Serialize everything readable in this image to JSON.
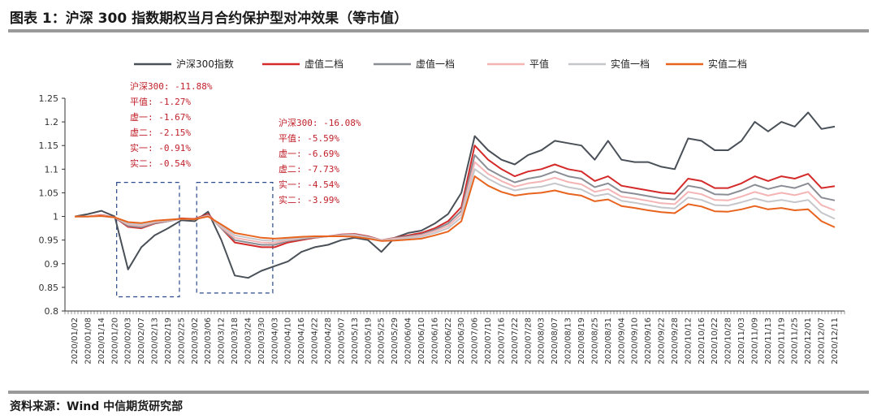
{
  "header": {
    "title": "图表 1：沪深 300 指数期权当月合约保护型对冲效果（等市值）"
  },
  "footer": {
    "source": "资料来源：Wind 中信期货研究部"
  },
  "chart_data": {
    "type": "line",
    "ylim": [
      0.8,
      1.25
    ],
    "yticks": [
      "0.8",
      "0.85",
      "0.9",
      "0.95",
      "1",
      "1.05",
      "1.1",
      "1.15",
      "1.2",
      "1.25"
    ],
    "grid": false,
    "legend_position": "top",
    "x_tick_labels": [
      "2020/01/02",
      "2020/01/08",
      "2020/01/14",
      "2020/01/20",
      "2020/02/03",
      "2020/02/07",
      "2020/02/13",
      "2020/02/19",
      "2020/02/25",
      "2020/03/02",
      "2020/03/06",
      "2020/03/12",
      "2020/03/18",
      "2020/03/24",
      "2020/03/30",
      "2020/04/03",
      "2020/04/10",
      "2020/04/16",
      "2020/04/22",
      "2020/04/28",
      "2020/05/07",
      "2020/05/13",
      "2020/05/19",
      "2020/05/25",
      "2020/05/29",
      "2020/06/04",
      "2020/06/10",
      "2020/06/16",
      "2020/06/22",
      "2020/06/30",
      "2020/07/06",
      "2020/07/10",
      "2020/07/16",
      "2020/07/22",
      "2020/07/28",
      "2020/08/03",
      "2020/08/07",
      "2020/08/13",
      "2020/08/19",
      "2020/08/25",
      "2020/08/31",
      "2020/09/04",
      "2020/09/10",
      "2020/09/16",
      "2020/09/22",
      "2020/09/28",
      "2020/10/12",
      "2020/10/16",
      "2020/10/22",
      "2020/10/28",
      "2020/11/03",
      "2020/11/09",
      "2020/11/13",
      "2020/11/19",
      "2020/11/25",
      "2020/12/01",
      "2020/12/07",
      "2020/12/11"
    ],
    "series": [
      {
        "name": "沪深300指数",
        "color": "#4a5058",
        "x": [
          "2020/01/02",
          "2020/01/08",
          "2020/01/14",
          "2020/01/20",
          "2020/02/03",
          "2020/02/07",
          "2020/02/13",
          "2020/02/19",
          "2020/02/25",
          "2020/03/02",
          "2020/03/06",
          "2020/03/12",
          "2020/03/18",
          "2020/03/24",
          "2020/03/30",
          "2020/04/03",
          "2020/04/10",
          "2020/04/16",
          "2020/04/22",
          "2020/04/28",
          "2020/05/07",
          "2020/05/13",
          "2020/05/19",
          "2020/05/25",
          "2020/05/29",
          "2020/06/04",
          "2020/06/10",
          "2020/06/16",
          "2020/06/22",
          "2020/06/30",
          "2020/07/06",
          "2020/07/10",
          "2020/07/16",
          "2020/07/22",
          "2020/07/28",
          "2020/08/03",
          "2020/08/07",
          "2020/08/13",
          "2020/08/19",
          "2020/08/25",
          "2020/08/31",
          "2020/09/04",
          "2020/09/10",
          "2020/09/16",
          "2020/09/22",
          "2020/09/28",
          "2020/10/12",
          "2020/10/16",
          "2020/10/22",
          "2020/10/28",
          "2020/11/03",
          "2020/11/09",
          "2020/11/13",
          "2020/11/19",
          "2020/11/25",
          "2020/12/01",
          "2020/12/07",
          "2020/12/11"
        ],
        "values": [
          1.0,
          1.005,
          1.012,
          1.0,
          0.888,
          0.935,
          0.96,
          0.975,
          0.992,
          0.99,
          1.01,
          0.95,
          0.875,
          0.87,
          0.885,
          0.895,
          0.905,
          0.925,
          0.935,
          0.94,
          0.95,
          0.955,
          0.95,
          0.925,
          0.955,
          0.965,
          0.97,
          0.985,
          1.005,
          1.05,
          1.17,
          1.14,
          1.12,
          1.11,
          1.13,
          1.14,
          1.16,
          1.155,
          1.15,
          1.12,
          1.16,
          1.12,
          1.115,
          1.115,
          1.105,
          1.1,
          1.165,
          1.16,
          1.14,
          1.14,
          1.16,
          1.2,
          1.18,
          1.2,
          1.19,
          1.22,
          1.185,
          1.19
        ]
      },
      {
        "name": "虚值二档",
        "color": "#d42a2a",
        "x": [
          "2020/01/02",
          "2020/01/08",
          "2020/01/14",
          "2020/01/20",
          "2020/02/03",
          "2020/02/07",
          "2020/02/13",
          "2020/02/19",
          "2020/02/25",
          "2020/03/02",
          "2020/03/06",
          "2020/03/12",
          "2020/03/18",
          "2020/03/24",
          "2020/03/30",
          "2020/04/03",
          "2020/04/10",
          "2020/04/16",
          "2020/04/22",
          "2020/04/28",
          "2020/05/07",
          "2020/05/13",
          "2020/05/19",
          "2020/05/25",
          "2020/05/29",
          "2020/06/04",
          "2020/06/10",
          "2020/06/16",
          "2020/06/22",
          "2020/06/30",
          "2020/07/06",
          "2020/07/10",
          "2020/07/16",
          "2020/07/22",
          "2020/07/28",
          "2020/08/03",
          "2020/08/07",
          "2020/08/13",
          "2020/08/19",
          "2020/08/25",
          "2020/08/31",
          "2020/09/04",
          "2020/09/10",
          "2020/09/16",
          "2020/09/22",
          "2020/09/28",
          "2020/10/12",
          "2020/10/16",
          "2020/10/22",
          "2020/10/28",
          "2020/11/03",
          "2020/11/09",
          "2020/11/13",
          "2020/11/19",
          "2020/11/25",
          "2020/12/01",
          "2020/12/07",
          "2020/12/11"
        ],
        "values": [
          1.0,
          1.0,
          1.003,
          0.998,
          0.978,
          0.975,
          0.985,
          0.99,
          0.996,
          0.995,
          1.005,
          0.975,
          0.945,
          0.94,
          0.935,
          0.935,
          0.945,
          0.95,
          0.955,
          0.958,
          0.962,
          0.963,
          0.958,
          0.95,
          0.955,
          0.96,
          0.965,
          0.975,
          0.99,
          1.02,
          1.15,
          1.12,
          1.1,
          1.085,
          1.095,
          1.1,
          1.11,
          1.1,
          1.095,
          1.075,
          1.085,
          1.065,
          1.06,
          1.055,
          1.05,
          1.048,
          1.08,
          1.075,
          1.06,
          1.06,
          1.07,
          1.085,
          1.075,
          1.085,
          1.08,
          1.09,
          1.06,
          1.064
        ]
      },
      {
        "name": "虚值一档",
        "color": "#8a8e94",
        "x": [
          "2020/01/02",
          "2020/01/08",
          "2020/01/14",
          "2020/01/20",
          "2020/02/03",
          "2020/02/07",
          "2020/02/13",
          "2020/02/19",
          "2020/02/25",
          "2020/03/02",
          "2020/03/06",
          "2020/03/12",
          "2020/03/18",
          "2020/03/24",
          "2020/03/30",
          "2020/04/03",
          "2020/04/10",
          "2020/04/16",
          "2020/04/22",
          "2020/04/28",
          "2020/05/07",
          "2020/05/13",
          "2020/05/19",
          "2020/05/25",
          "2020/05/29",
          "2020/06/04",
          "2020/06/10",
          "2020/06/16",
          "2020/06/22",
          "2020/06/30",
          "2020/07/06",
          "2020/07/10",
          "2020/07/16",
          "2020/07/22",
          "2020/07/28",
          "2020/08/03",
          "2020/08/07",
          "2020/08/13",
          "2020/08/19",
          "2020/08/25",
          "2020/08/31",
          "2020/09/04",
          "2020/09/10",
          "2020/09/16",
          "2020/09/22",
          "2020/09/28",
          "2020/10/12",
          "2020/10/16",
          "2020/10/22",
          "2020/10/28",
          "2020/11/03",
          "2020/11/09",
          "2020/11/13",
          "2020/11/19",
          "2020/11/25",
          "2020/12/01",
          "2020/12/07",
          "2020/12/11"
        ],
        "values": [
          1.0,
          1.0,
          1.002,
          0.998,
          0.98,
          0.977,
          0.986,
          0.99,
          0.995,
          0.994,
          1.003,
          0.975,
          0.95,
          0.945,
          0.94,
          0.94,
          0.948,
          0.952,
          0.956,
          0.958,
          0.961,
          0.962,
          0.957,
          0.95,
          0.954,
          0.958,
          0.962,
          0.972,
          0.985,
          1.012,
          1.13,
          1.1,
          1.085,
          1.072,
          1.08,
          1.085,
          1.095,
          1.085,
          1.08,
          1.062,
          1.07,
          1.052,
          1.048,
          1.043,
          1.038,
          1.036,
          1.065,
          1.06,
          1.047,
          1.046,
          1.055,
          1.067,
          1.058,
          1.065,
          1.06,
          1.07,
          1.04,
          1.034
        ]
      },
      {
        "name": "平值",
        "color": "#f4b4b4",
        "x": [
          "2020/01/02",
          "2020/01/08",
          "2020/01/14",
          "2020/01/20",
          "2020/02/03",
          "2020/02/07",
          "2020/02/13",
          "2020/02/19",
          "2020/02/25",
          "2020/03/02",
          "2020/03/06",
          "2020/03/12",
          "2020/03/18",
          "2020/03/24",
          "2020/03/30",
          "2020/04/03",
          "2020/04/10",
          "2020/04/16",
          "2020/04/22",
          "2020/04/28",
          "2020/05/07",
          "2020/05/13",
          "2020/05/19",
          "2020/05/25",
          "2020/05/29",
          "2020/06/04",
          "2020/06/10",
          "2020/06/16",
          "2020/06/22",
          "2020/06/30",
          "2020/07/06",
          "2020/07/10",
          "2020/07/16",
          "2020/07/22",
          "2020/07/28",
          "2020/08/03",
          "2020/08/07",
          "2020/08/13",
          "2020/08/19",
          "2020/08/25",
          "2020/08/31",
          "2020/09/04",
          "2020/09/10",
          "2020/09/16",
          "2020/09/22",
          "2020/09/28",
          "2020/10/12",
          "2020/10/16",
          "2020/10/22",
          "2020/10/28",
          "2020/11/03",
          "2020/11/09",
          "2020/11/13",
          "2020/11/19",
          "2020/11/25",
          "2020/12/01",
          "2020/12/07",
          "2020/12/11"
        ],
        "values": [
          1.0,
          1.0,
          1.002,
          0.998,
          0.983,
          0.98,
          0.988,
          0.991,
          0.995,
          0.994,
          1.002,
          0.977,
          0.955,
          0.95,
          0.945,
          0.944,
          0.95,
          0.954,
          0.957,
          0.958,
          0.96,
          0.961,
          0.956,
          0.95,
          0.953,
          0.956,
          0.96,
          0.969,
          0.98,
          1.005,
          1.115,
          1.09,
          1.075,
          1.063,
          1.07,
          1.074,
          1.082,
          1.073,
          1.068,
          1.052,
          1.058,
          1.042,
          1.038,
          1.033,
          1.028,
          1.026,
          1.052,
          1.047,
          1.035,
          1.034,
          1.042,
          1.052,
          1.044,
          1.05,
          1.045,
          1.052,
          1.024,
          1.013
        ]
      },
      {
        "name": "实值一档",
        "color": "#c4c6ca",
        "x": [
          "2020/01/02",
          "2020/01/08",
          "2020/01/14",
          "2020/01/20",
          "2020/02/03",
          "2020/02/07",
          "2020/02/13",
          "2020/02/19",
          "2020/02/25",
          "2020/03/02",
          "2020/03/06",
          "2020/03/12",
          "2020/03/18",
          "2020/03/24",
          "2020/03/30",
          "2020/04/03",
          "2020/04/10",
          "2020/04/16",
          "2020/04/22",
          "2020/04/28",
          "2020/05/07",
          "2020/05/13",
          "2020/05/19",
          "2020/05/25",
          "2020/05/29",
          "2020/06/04",
          "2020/06/10",
          "2020/06/16",
          "2020/06/22",
          "2020/06/30",
          "2020/07/06",
          "2020/07/10",
          "2020/07/16",
          "2020/07/22",
          "2020/07/28",
          "2020/08/03",
          "2020/08/07",
          "2020/08/13",
          "2020/08/19",
          "2020/08/25",
          "2020/08/31",
          "2020/09/04",
          "2020/09/10",
          "2020/09/16",
          "2020/09/22",
          "2020/09/28",
          "2020/10/12",
          "2020/10/16",
          "2020/10/22",
          "2020/10/28",
          "2020/11/03",
          "2020/11/09",
          "2020/11/13",
          "2020/11/19",
          "2020/11/25",
          "2020/12/01",
          "2020/12/07",
          "2020/12/11"
        ],
        "values": [
          1.0,
          1.0,
          1.001,
          0.998,
          0.985,
          0.983,
          0.99,
          0.992,
          0.995,
          0.994,
          1.001,
          0.98,
          0.96,
          0.955,
          0.95,
          0.948,
          0.952,
          0.955,
          0.957,
          0.958,
          0.959,
          0.959,
          0.955,
          0.949,
          0.951,
          0.954,
          0.957,
          0.965,
          0.975,
          0.998,
          1.1,
          1.08,
          1.065,
          1.055,
          1.06,
          1.063,
          1.07,
          1.062,
          1.057,
          1.043,
          1.048,
          1.033,
          1.029,
          1.024,
          1.019,
          1.017,
          1.04,
          1.035,
          1.024,
          1.023,
          1.03,
          1.038,
          1.031,
          1.035,
          1.03,
          1.035,
          1.008,
          0.995
        ]
      },
      {
        "name": "实值二档",
        "color": "#e8641e",
        "x": [
          "2020/01/02",
          "2020/01/08",
          "2020/01/14",
          "2020/01/20",
          "2020/02/03",
          "2020/02/07",
          "2020/02/13",
          "2020/02/19",
          "2020/02/25",
          "2020/03/02",
          "2020/03/06",
          "2020/03/12",
          "2020/03/18",
          "2020/03/24",
          "2020/03/30",
          "2020/04/03",
          "2020/04/10",
          "2020/04/16",
          "2020/04/22",
          "2020/04/28",
          "2020/05/07",
          "2020/05/13",
          "2020/05/19",
          "2020/05/25",
          "2020/05/29",
          "2020/06/04",
          "2020/06/10",
          "2020/06/16",
          "2020/06/22",
          "2020/06/30",
          "2020/07/06",
          "2020/07/10",
          "2020/07/16",
          "2020/07/22",
          "2020/07/28",
          "2020/08/03",
          "2020/08/07",
          "2020/08/13",
          "2020/08/19",
          "2020/08/25",
          "2020/08/31",
          "2020/09/04",
          "2020/09/10",
          "2020/09/16",
          "2020/09/22",
          "2020/09/28",
          "2020/10/12",
          "2020/10/16",
          "2020/10/22",
          "2020/10/28",
          "2020/11/03",
          "2020/11/09",
          "2020/11/13",
          "2020/11/19",
          "2020/11/25",
          "2020/12/01",
          "2020/12/07",
          "2020/12/11"
        ],
        "values": [
          1.0,
          1.0,
          1.001,
          0.998,
          0.988,
          0.986,
          0.991,
          0.993,
          0.995,
          0.994,
          1.0,
          0.983,
          0.965,
          0.96,
          0.955,
          0.953,
          0.955,
          0.957,
          0.958,
          0.958,
          0.958,
          0.957,
          0.953,
          0.948,
          0.949,
          0.951,
          0.953,
          0.96,
          0.968,
          0.99,
          1.085,
          1.065,
          1.052,
          1.044,
          1.048,
          1.05,
          1.055,
          1.048,
          1.044,
          1.032,
          1.036,
          1.022,
          1.018,
          1.013,
          1.009,
          1.007,
          1.026,
          1.021,
          1.011,
          1.01,
          1.015,
          1.022,
          1.015,
          1.018,
          1.013,
          1.015,
          0.99,
          0.977
        ]
      }
    ],
    "annotations": [
      {
        "lines": [
          "沪深300: -11.88%",
          "平值: -1.27%",
          "虚一: -1.67%",
          "虚二: -2.15%",
          "实一: -0.91%",
          "实二: -0.54%"
        ],
        "box_from": "2020/02/03",
        "box_to": "2020/02/19",
        "box_ylim": [
          0.83,
          1.072
        ]
      },
      {
        "lines": [
          "沪深300: -16.08%",
          "平值: -5.59%",
          "虚一: -6.69%",
          "虚二: -7.73%",
          "实一: -4.54%",
          "实二: -3.99%"
        ],
        "box_from": "2020/03/06",
        "box_to": "2020/03/30",
        "box_ylim": [
          0.838,
          1.072
        ]
      }
    ]
  }
}
